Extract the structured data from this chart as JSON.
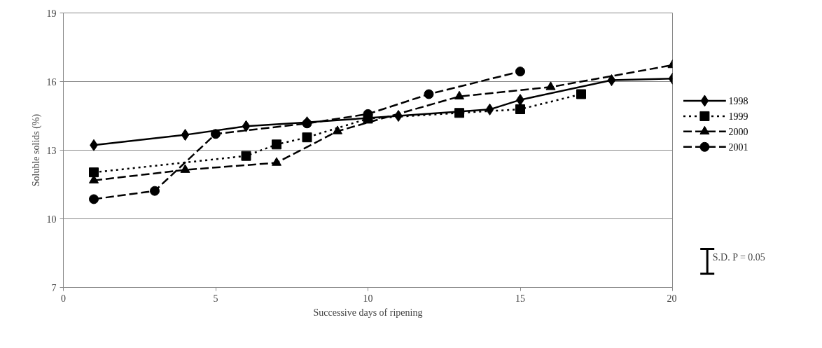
{
  "chart_data": {
    "type": "line",
    "xlabel": "Successive days of ripening",
    "ylabel": "Soluble solids (%)",
    "xlim": [
      0,
      20
    ],
    "ylim": [
      7,
      19
    ],
    "xticks": [
      0,
      5,
      10,
      15,
      20
    ],
    "yticks": [
      7,
      10,
      13,
      16,
      19
    ],
    "grid": "y",
    "legend": "right",
    "series": [
      {
        "name": "1998",
        "color": "#000000",
        "marker": "diamond",
        "line_style": "solid",
        "x": [
          1,
          4,
          6,
          8,
          11,
          14,
          15,
          18,
          20
        ],
        "values": [
          13.22,
          13.67,
          14.05,
          14.22,
          14.5,
          14.78,
          15.2,
          16.06,
          16.13
        ]
      },
      {
        "name": "1999",
        "color": "#000000",
        "marker": "square",
        "line_style": "dotted",
        "x": [
          1,
          6,
          7,
          8,
          10,
          13,
          15,
          17
        ],
        "values": [
          12.03,
          12.75,
          13.25,
          13.56,
          14.38,
          14.63,
          14.79,
          15.45
        ]
      },
      {
        "name": "2000",
        "color": "#000000",
        "marker": "triangle",
        "line_style": "dashed",
        "x": [
          1,
          4,
          7,
          9,
          13,
          16,
          20
        ],
        "values": [
          11.68,
          12.14,
          12.45,
          13.83,
          15.35,
          15.76,
          16.72
        ]
      },
      {
        "name": "2001",
        "color": "#000000",
        "marker": "circle",
        "line_style": "dashed",
        "x": [
          1,
          3,
          5,
          8,
          10,
          12,
          15
        ],
        "values": [
          10.86,
          11.22,
          13.71,
          14.17,
          14.58,
          15.45,
          16.44
        ]
      }
    ],
    "annotations": [
      "S.D. P = 0.05"
    ]
  }
}
